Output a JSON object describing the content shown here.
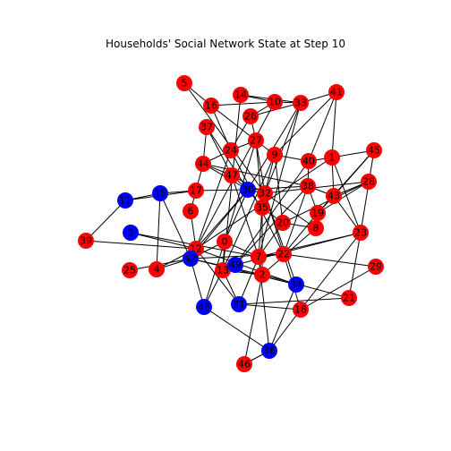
{
  "chart_data": {
    "type": "network",
    "title": "Households' Social Network State at Step 10",
    "colors": {
      "red": "#ff0000",
      "blue": "#0000ff"
    },
    "nodes": [
      {
        "id": "5",
        "state": "red"
      },
      {
        "id": "14",
        "state": "red"
      },
      {
        "id": "16",
        "state": "red"
      },
      {
        "id": "10",
        "state": "red"
      },
      {
        "id": "33",
        "state": "red"
      },
      {
        "id": "41",
        "state": "red"
      },
      {
        "id": "26",
        "state": "red"
      },
      {
        "id": "37",
        "state": "red"
      },
      {
        "id": "27",
        "state": "red"
      },
      {
        "id": "24",
        "state": "red"
      },
      {
        "id": "9",
        "state": "red"
      },
      {
        "id": "40",
        "state": "red"
      },
      {
        "id": "1",
        "state": "red"
      },
      {
        "id": "45",
        "state": "red"
      },
      {
        "id": "44",
        "state": "red"
      },
      {
        "id": "47",
        "state": "red"
      },
      {
        "id": "38",
        "state": "red"
      },
      {
        "id": "28",
        "state": "red"
      },
      {
        "id": "17",
        "state": "red"
      },
      {
        "id": "32",
        "state": "red"
      },
      {
        "id": "43",
        "state": "red"
      },
      {
        "id": "6",
        "state": "red"
      },
      {
        "id": "35",
        "state": "red"
      },
      {
        "id": "19",
        "state": "red"
      },
      {
        "id": "20",
        "state": "red"
      },
      {
        "id": "8",
        "state": "red"
      },
      {
        "id": "23",
        "state": "red"
      },
      {
        "id": "39",
        "state": "red"
      },
      {
        "id": "0",
        "state": "red"
      },
      {
        "id": "12",
        "state": "red"
      },
      {
        "id": "7",
        "state": "red"
      },
      {
        "id": "22",
        "state": "red"
      },
      {
        "id": "29",
        "state": "red"
      },
      {
        "id": "25",
        "state": "red"
      },
      {
        "id": "4",
        "state": "red"
      },
      {
        "id": "13",
        "state": "red"
      },
      {
        "id": "2",
        "state": "red"
      },
      {
        "id": "21",
        "state": "red"
      },
      {
        "id": "18",
        "state": "red"
      },
      {
        "id": "46",
        "state": "red"
      },
      {
        "id": "11",
        "state": "blue"
      },
      {
        "id": "15",
        "state": "blue"
      },
      {
        "id": "30",
        "state": "blue"
      },
      {
        "id": "3",
        "state": "blue"
      },
      {
        "id": "42",
        "state": "blue"
      },
      {
        "id": "31",
        "state": "blue"
      },
      {
        "id": "34",
        "state": "blue"
      },
      {
        "id": "36",
        "state": "blue"
      },
      {
        "id": "48",
        "state": "blue"
      },
      {
        "id": "49",
        "state": "blue"
      }
    ],
    "edges": [
      [
        "5",
        "16"
      ],
      [
        "5",
        "32"
      ],
      [
        "16",
        "10"
      ],
      [
        "16",
        "24"
      ],
      [
        "16",
        "27"
      ],
      [
        "14",
        "10"
      ],
      [
        "14",
        "33"
      ],
      [
        "14",
        "13"
      ],
      [
        "10",
        "33"
      ],
      [
        "10",
        "26"
      ],
      [
        "10",
        "12"
      ],
      [
        "33",
        "41"
      ],
      [
        "33",
        "26"
      ],
      [
        "33",
        "30"
      ],
      [
        "33",
        "32"
      ],
      [
        "33",
        "7"
      ],
      [
        "41",
        "40"
      ],
      [
        "41",
        "1"
      ],
      [
        "41",
        "9"
      ],
      [
        "37",
        "44"
      ],
      [
        "37",
        "30"
      ],
      [
        "37",
        "47"
      ],
      [
        "26",
        "27"
      ],
      [
        "26",
        "24"
      ],
      [
        "27",
        "9"
      ],
      [
        "27",
        "24"
      ],
      [
        "27",
        "32"
      ],
      [
        "27",
        "35"
      ],
      [
        "27",
        "0"
      ],
      [
        "24",
        "44"
      ],
      [
        "24",
        "22"
      ],
      [
        "24",
        "12"
      ],
      [
        "9",
        "40"
      ],
      [
        "9",
        "32"
      ],
      [
        "9",
        "20"
      ],
      [
        "9",
        "13"
      ],
      [
        "40",
        "1"
      ],
      [
        "40",
        "38"
      ],
      [
        "40",
        "49"
      ],
      [
        "1",
        "45"
      ],
      [
        "1",
        "43"
      ],
      [
        "1",
        "23"
      ],
      [
        "1",
        "12"
      ],
      [
        "45",
        "43"
      ],
      [
        "45",
        "19"
      ],
      [
        "45",
        "23"
      ],
      [
        "44",
        "47"
      ],
      [
        "44",
        "17"
      ],
      [
        "44",
        "30"
      ],
      [
        "44",
        "38"
      ],
      [
        "47",
        "30"
      ],
      [
        "47",
        "32"
      ],
      [
        "47",
        "7"
      ],
      [
        "30",
        "32"
      ],
      [
        "30",
        "38"
      ],
      [
        "30",
        "0"
      ],
      [
        "30",
        "35"
      ],
      [
        "30",
        "12"
      ],
      [
        "30",
        "42"
      ],
      [
        "38",
        "19"
      ],
      [
        "38",
        "43"
      ],
      [
        "38",
        "22"
      ],
      [
        "38",
        "49"
      ],
      [
        "28",
        "19"
      ],
      [
        "28",
        "32"
      ],
      [
        "28",
        "20"
      ],
      [
        "17",
        "11"
      ],
      [
        "17",
        "15"
      ],
      [
        "17",
        "6"
      ],
      [
        "17",
        "30"
      ],
      [
        "32",
        "35"
      ],
      [
        "32",
        "22"
      ],
      [
        "32",
        "8"
      ],
      [
        "32",
        "34"
      ],
      [
        "43",
        "19"
      ],
      [
        "43",
        "23"
      ],
      [
        "43",
        "28"
      ],
      [
        "6",
        "12"
      ],
      [
        "35",
        "20"
      ],
      [
        "35",
        "7"
      ],
      [
        "35",
        "2"
      ],
      [
        "19",
        "8"
      ],
      [
        "19",
        "22"
      ],
      [
        "20",
        "7"
      ],
      [
        "8",
        "2"
      ],
      [
        "8",
        "20"
      ],
      [
        "23",
        "18"
      ],
      [
        "23",
        "21"
      ],
      [
        "23",
        "7"
      ],
      [
        "23",
        "49"
      ],
      [
        "11",
        "15"
      ],
      [
        "11",
        "39"
      ],
      [
        "15",
        "4"
      ],
      [
        "15",
        "42"
      ],
      [
        "3",
        "12"
      ],
      [
        "3",
        "7"
      ],
      [
        "39",
        "12"
      ],
      [
        "0",
        "13"
      ],
      [
        "0",
        "42"
      ],
      [
        "0",
        "48"
      ],
      [
        "0",
        "7"
      ],
      [
        "12",
        "42"
      ],
      [
        "12",
        "4"
      ],
      [
        "12",
        "31"
      ],
      [
        "12",
        "34"
      ],
      [
        "7",
        "22"
      ],
      [
        "7",
        "2"
      ],
      [
        "7",
        "36"
      ],
      [
        "7",
        "31"
      ],
      [
        "22",
        "29"
      ],
      [
        "22",
        "18"
      ],
      [
        "22",
        "42"
      ],
      [
        "25",
        "42"
      ],
      [
        "4",
        "42"
      ],
      [
        "42",
        "48"
      ],
      [
        "42",
        "34"
      ],
      [
        "42",
        "2"
      ],
      [
        "31",
        "21"
      ],
      [
        "31",
        "18"
      ],
      [
        "31",
        "13"
      ],
      [
        "13",
        "2"
      ],
      [
        "13",
        "48"
      ],
      [
        "34",
        "36"
      ],
      [
        "36",
        "18"
      ],
      [
        "36",
        "48"
      ],
      [
        "18",
        "29"
      ],
      [
        "46",
        "36"
      ],
      [
        "46",
        "2"
      ],
      [
        "2",
        "21"
      ]
    ]
  }
}
